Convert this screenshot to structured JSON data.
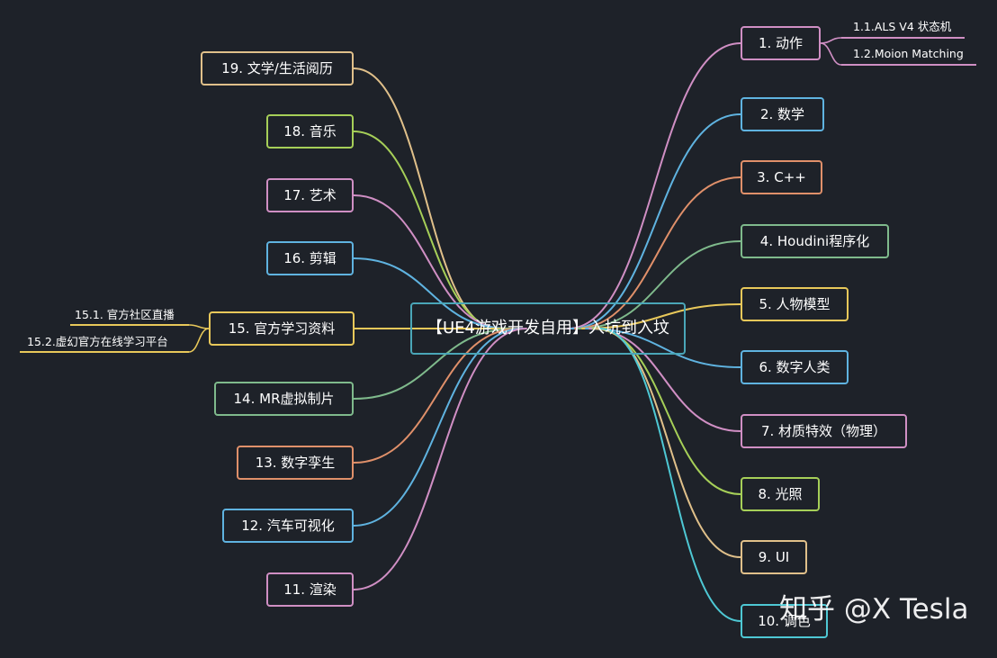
{
  "center": {
    "label": "【UE4游戏开发自用】入坑到入坟",
    "color": "#4aa6b8"
  },
  "right_nodes": [
    {
      "label": "1. 动作",
      "color": "#d08fc4",
      "children": [
        "1.1.ALS V4  状态机",
        "1.2.Moion Matching"
      ]
    },
    {
      "label": "2. 数学",
      "color": "#5fb3e0"
    },
    {
      "label": "3. C++",
      "color": "#e0906a"
    },
    {
      "label": "4. Houdini程序化",
      "color": "#7fba8c"
    },
    {
      "label": "5. 人物模型",
      "color": "#e8c85a"
    },
    {
      "label": "6. 数字人类",
      "color": "#5fb3e0"
    },
    {
      "label": "7. 材质特效（物理）",
      "color": "#d08fc4"
    },
    {
      "label": "8. 光照",
      "color": "#a6cf58"
    },
    {
      "label": "9. UI",
      "color": "#e0c08a"
    },
    {
      "label": "10. 调色",
      "color": "#4ec8d4"
    }
  ],
  "left_nodes": [
    {
      "label": "19. 文学/生活阅历",
      "color": "#e0c08a"
    },
    {
      "label": "18. 音乐",
      "color": "#a6cf58"
    },
    {
      "label": "17. 艺术",
      "color": "#d08fc4"
    },
    {
      "label": "16. 剪辑",
      "color": "#5fb3e0"
    },
    {
      "label": "15. 官方学习资料",
      "color": "#e8c85a",
      "children": [
        "15.1. 官方社区直播",
        "15.2.虚幻官方在线学习平台"
      ]
    },
    {
      "label": "14. MR虚拟制片",
      "color": "#7fba8c"
    },
    {
      "label": "13. 数字孪生",
      "color": "#e0906a"
    },
    {
      "label": "12. 汽车可视化",
      "color": "#5fb3e0"
    },
    {
      "label": "11. 渲染",
      "color": "#d08fc4"
    }
  ],
  "watermark": "知乎 @X Tesla"
}
